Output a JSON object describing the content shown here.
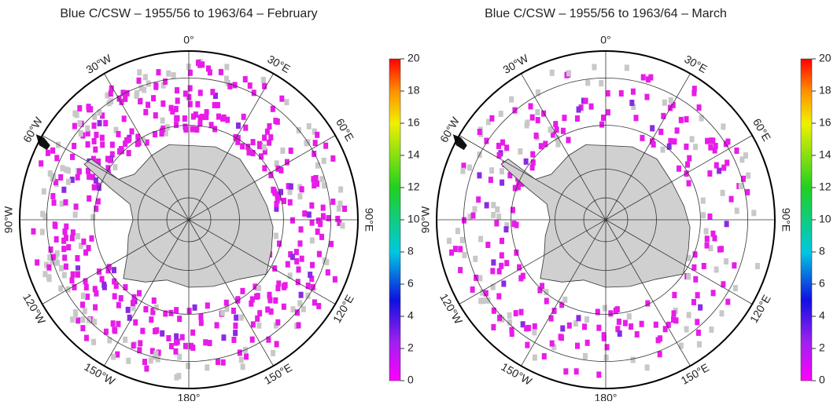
{
  "maps": [
    {
      "title": "Blue C/CSW – 1955/56 to 1963/64 – February"
    },
    {
      "title": "Blue C/CSW – 1955/56 to 1963/64 – March"
    }
  ],
  "longitude_labels": [
    "0°",
    "30°E",
    "60°E",
    "90°E",
    "120°E",
    "150°E",
    "180°",
    "150°W",
    "120°W",
    "90°W",
    "60°W",
    "30°W"
  ],
  "colorbar": {
    "lim": [
      0,
      20
    ],
    "ticks": [
      0,
      2,
      4,
      6,
      8,
      10,
      12,
      14,
      16,
      18,
      20
    ]
  }
}
